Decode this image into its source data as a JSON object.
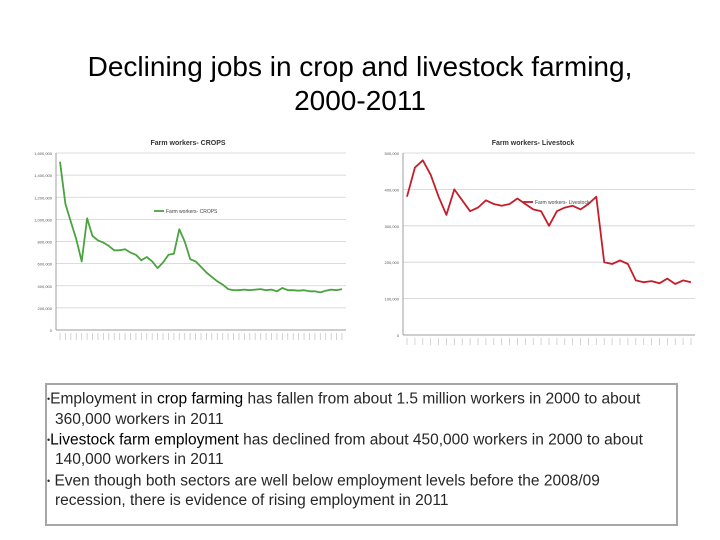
{
  "title": "Declining jobs in crop and livestock farming,\n2000-2011",
  "colors": {
    "crops": "#4aa33f",
    "livestock": "#c41e2a",
    "grid": "#d0d0d0"
  },
  "chart_data": [
    {
      "type": "line",
      "title": "Farm workers- CROPS",
      "legend": "Farm workers- CROPS",
      "legend_position": "center",
      "ylim": [
        0,
        1600000
      ],
      "yticks": [
        0,
        200000,
        400000,
        600000,
        800000,
        1000000,
        1200000,
        1400000,
        1600000
      ],
      "grid": true,
      "series": [
        {
          "name": "Farm workers- CROPS",
          "values": [
            1520000,
            1140000,
            980000,
            820000,
            620000,
            1010000,
            850000,
            810000,
            790000,
            760000,
            720000,
            720000,
            730000,
            700000,
            680000,
            630000,
            660000,
            620000,
            560000,
            610000,
            680000,
            690000,
            910000,
            800000,
            640000,
            620000,
            570000,
            520000,
            480000,
            440000,
            410000,
            370000,
            360000,
            360000,
            365000,
            360000,
            365000,
            370000,
            360000,
            365000,
            350000,
            380000,
            360000,
            360000,
            355000,
            360000,
            350000,
            350000,
            340000,
            355000,
            365000,
            360000,
            370000
          ]
        }
      ]
    },
    {
      "type": "line",
      "title": "Farm workers- Livestock",
      "legend": "Farm workers- Livestock",
      "legend_position": "top-right",
      "ylim": [
        0,
        500000
      ],
      "yticks": [
        0,
        100000,
        200000,
        300000,
        400000,
        500000
      ],
      "grid": true,
      "series": [
        {
          "name": "Farm workers- Livestock",
          "values": [
            380000,
            460000,
            480000,
            440000,
            380000,
            330000,
            400000,
            370000,
            340000,
            350000,
            370000,
            360000,
            355000,
            360000,
            375000,
            360000,
            345000,
            340000,
            300000,
            340000,
            350000,
            355000,
            345000,
            360000,
            380000,
            200000,
            195000,
            205000,
            195000,
            150000,
            145000,
            148000,
            142000,
            155000,
            140000,
            150000,
            145000
          ]
        }
      ]
    }
  ],
  "text_box": {
    "p1_a": "Employment in ",
    "p1_em": "crop farming",
    "p1_b": "  has fallen from  about 1.5 million workers in 2000 to about  360,000 workers in 2011",
    "p2_em": "Livestock farm  employment",
    "p2_b": " has declined from about  450,000 workers in 2000 to about  140,000 workers in 2011",
    "p3": " Even though both sectors are well below employment levels before the 2008/09 recession, there is evidence of rising employment in 2011"
  }
}
